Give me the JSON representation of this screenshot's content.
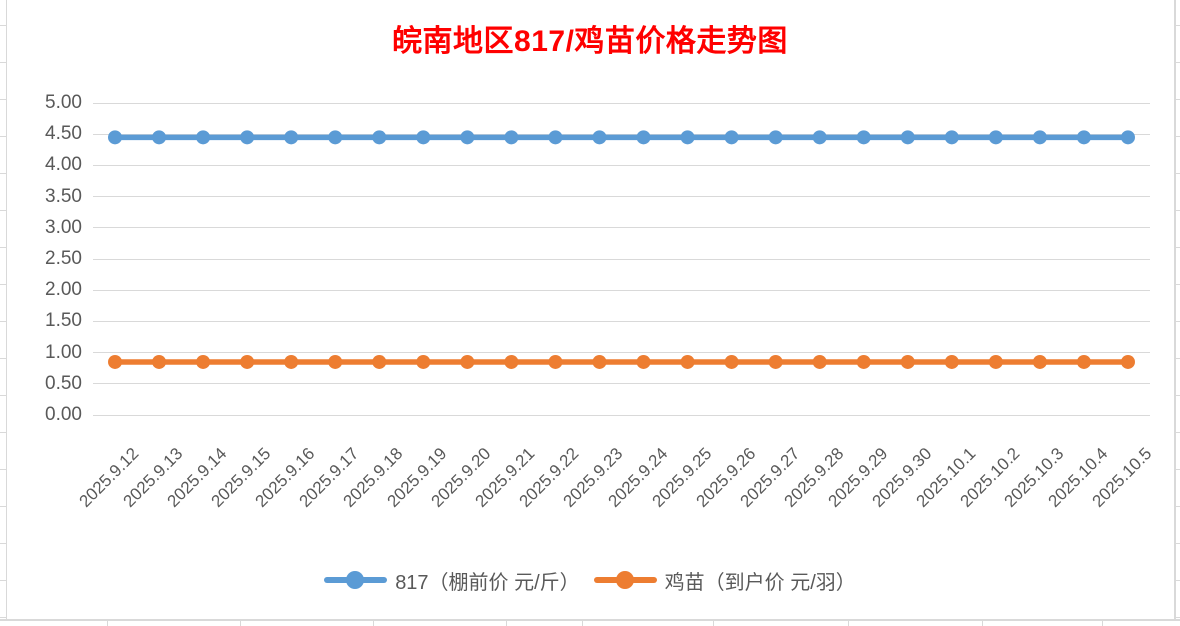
{
  "chart_data": {
    "type": "line",
    "title": "皖南地区817/鸡苗价格走势图",
    "title_color": "#FF0000",
    "categories": [
      "2025.9.12",
      "2025.9.13",
      "2025.9.14",
      "2025.9.15",
      "2025.9.16",
      "2025.9.17",
      "2025.9.18",
      "2025.9.19",
      "2025.9.20",
      "2025.9.21",
      "2025.9.22",
      "2025.9.23",
      "2025.9.24",
      "2025.9.25",
      "2025.9.26",
      "2025.9.27",
      "2025.9.28",
      "2025.9.29",
      "2025.9.30",
      "2025.10.1",
      "2025.10.2",
      "2025.10.3",
      "2025.10.4",
      "2025.10.5"
    ],
    "series": [
      {
        "name": "817（棚前价 元/斤）",
        "color": "#5B9BD5",
        "values": [
          4.45,
          4.45,
          4.45,
          4.45,
          4.45,
          4.45,
          4.45,
          4.45,
          4.45,
          4.45,
          4.45,
          4.45,
          4.45,
          4.45,
          4.45,
          4.45,
          4.45,
          4.45,
          4.45,
          4.45,
          4.45,
          4.45,
          4.45,
          4.45
        ]
      },
      {
        "name": "鸡苗（到户价 元/羽）",
        "color": "#ED7D31",
        "values": [
          0.85,
          0.85,
          0.85,
          0.85,
          0.85,
          0.85,
          0.85,
          0.85,
          0.85,
          0.85,
          0.85,
          0.85,
          0.85,
          0.85,
          0.85,
          0.85,
          0.85,
          0.85,
          0.85,
          0.85,
          0.85,
          0.85,
          0.85,
          0.85
        ]
      }
    ],
    "xlabel": "",
    "ylabel": "",
    "ylim": [
      0,
      5
    ],
    "y_tick_step": 0.5,
    "y_ticks": [
      "0.00",
      "0.50",
      "1.00",
      "1.50",
      "2.00",
      "2.50",
      "3.00",
      "3.50",
      "4.00",
      "4.50",
      "5.00"
    ],
    "grid": true,
    "legend_position": "bottom",
    "colors": {
      "gridline": "#D9D9D9",
      "tick_label": "#595959",
      "chart_border": "#D9D9D9"
    }
  }
}
